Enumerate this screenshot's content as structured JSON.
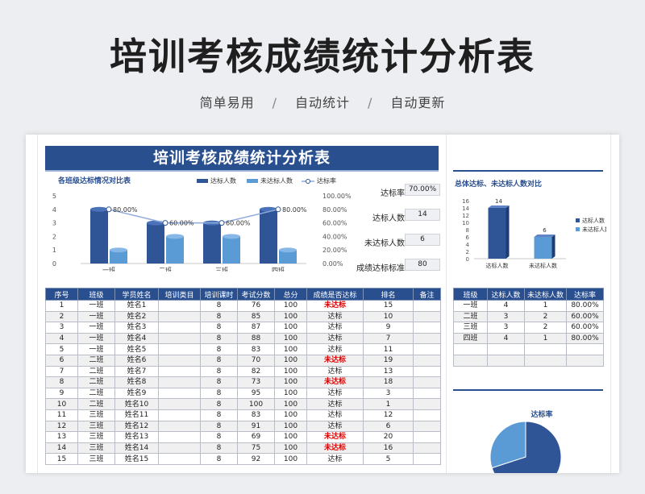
{
  "banner": {
    "title": "培训考核成绩统计分析表",
    "tags": [
      "简单易用",
      "自动统计",
      "自动更新"
    ],
    "separator": "/"
  },
  "sheet": {
    "title": "培训考核成绩统计分析表",
    "summary": [
      {
        "label": "达标率",
        "value": "70.00%"
      },
      {
        "label": "达标人数",
        "value": "14"
      },
      {
        "label": "未达标人数",
        "value": "6"
      },
      {
        "label": "成绩达标标准",
        "value": "80"
      }
    ],
    "table": {
      "headers": [
        "序号",
        "班级",
        "学员姓名",
        "培训类目",
        "培训课时",
        "考试分数",
        "总分",
        "成绩是否达标",
        "排名",
        "备注"
      ],
      "rows": [
        [
          "1",
          "一班",
          "姓名1",
          "",
          "8",
          "76",
          "100",
          "未达标",
          "15",
          ""
        ],
        [
          "2",
          "一班",
          "姓名2",
          "",
          "8",
          "85",
          "100",
          "达标",
          "10",
          ""
        ],
        [
          "3",
          "一班",
          "姓名3",
          "",
          "8",
          "87",
          "100",
          "达标",
          "9",
          ""
        ],
        [
          "4",
          "一班",
          "姓名4",
          "",
          "8",
          "88",
          "100",
          "达标",
          "7",
          ""
        ],
        [
          "5",
          "一班",
          "姓名5",
          "",
          "8",
          "83",
          "100",
          "达标",
          "11",
          ""
        ],
        [
          "6",
          "二班",
          "姓名6",
          "",
          "8",
          "70",
          "100",
          "未达标",
          "19",
          ""
        ],
        [
          "7",
          "二班",
          "姓名7",
          "",
          "8",
          "82",
          "100",
          "达标",
          "13",
          ""
        ],
        [
          "8",
          "二班",
          "姓名8",
          "",
          "8",
          "73",
          "100",
          "未达标",
          "18",
          ""
        ],
        [
          "9",
          "二班",
          "姓名9",
          "",
          "8",
          "95",
          "100",
          "达标",
          "3",
          ""
        ],
        [
          "10",
          "二班",
          "姓名10",
          "",
          "8",
          "100",
          "100",
          "达标",
          "1",
          ""
        ],
        [
          "11",
          "三班",
          "姓名11",
          "",
          "8",
          "83",
          "100",
          "达标",
          "12",
          ""
        ],
        [
          "12",
          "三班",
          "姓名12",
          "",
          "8",
          "91",
          "100",
          "达标",
          "6",
          ""
        ],
        [
          "13",
          "三班",
          "姓名13",
          "",
          "8",
          "69",
          "100",
          "未达标",
          "20",
          ""
        ],
        [
          "14",
          "三班",
          "姓名14",
          "",
          "8",
          "75",
          "100",
          "未达标",
          "16",
          ""
        ],
        [
          "15",
          "三班",
          "姓名15",
          "",
          "8",
          "92",
          "100",
          "达标",
          "5",
          ""
        ]
      ]
    }
  },
  "chart_data": [
    {
      "type": "bar",
      "title": "各班级达标情况对比表",
      "categories": [
        "一班",
        "二班",
        "三班",
        "四班"
      ],
      "series": [
        {
          "name": "达标人数",
          "type": "bar",
          "values": [
            4,
            3,
            3,
            4
          ],
          "color": "#2f5597"
        },
        {
          "name": "未达标人数",
          "type": "bar",
          "values": [
            1,
            2,
            2,
            1
          ],
          "color": "#5b9bd5"
        },
        {
          "name": "达标率",
          "type": "line",
          "axis": "right",
          "values": [
            80,
            60,
            60,
            80
          ],
          "labels": [
            "80.00%",
            "60.00%",
            "60.00%",
            "80.00%"
          ],
          "color": "#8faadc"
        }
      ],
      "ylim": [
        0,
        5
      ],
      "yticks": [
        "0",
        "1",
        "2",
        "3",
        "4",
        "5"
      ],
      "y2lim": [
        0,
        100
      ],
      "y2ticks": [
        "0.00%",
        "20.00%",
        "40.00%",
        "60.00%",
        "80.00%",
        "100.00%"
      ],
      "legend": "top-right"
    },
    {
      "type": "bar",
      "title": "总体达标、未达标人数对比",
      "categories": [
        "达标人数",
        "未达标人数"
      ],
      "values": [
        14,
        6
      ],
      "ylim": [
        0,
        16
      ],
      "yticks": [
        "0",
        "2",
        "4",
        "6",
        "8",
        "10",
        "12",
        "14",
        "16"
      ],
      "colors": [
        "#2f5597",
        "#5b9bd5"
      ],
      "legend": "right"
    },
    {
      "type": "table",
      "headers": [
        "班级",
        "达标人数",
        "未达标人数",
        "达标率"
      ],
      "rows": [
        [
          "一班",
          "4",
          "1",
          "80.00%"
        ],
        [
          "二班",
          "3",
          "2",
          "60.00%"
        ],
        [
          "三班",
          "3",
          "2",
          "60.00%"
        ],
        [
          "四班",
          "4",
          "1",
          "80.00%"
        ]
      ]
    },
    {
      "type": "pie",
      "title": "达标率",
      "values": [
        70,
        30
      ],
      "colors": [
        "#2f5597",
        "#5b9bd5"
      ]
    }
  ]
}
